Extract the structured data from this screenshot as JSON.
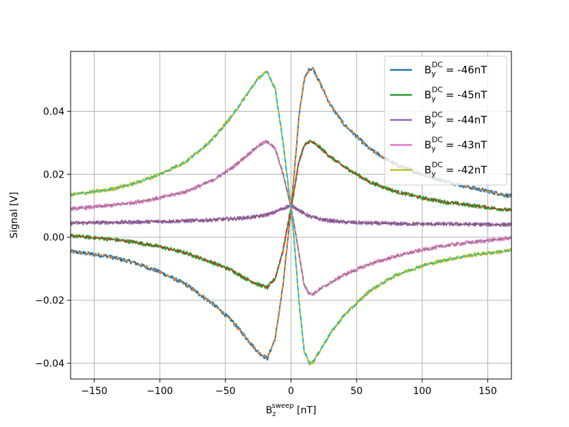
{
  "chart_data": {
    "type": "line",
    "title": "",
    "xlabel": {
      "base": "B",
      "sub": "z",
      "sup": "sweep",
      "unit": " [nT]"
    },
    "ylabel": "Signal [V]",
    "xlim": [
      -168,
      168
    ],
    "ylim": [
      -0.045,
      0.059
    ],
    "xticks": [
      -150,
      -100,
      -50,
      0,
      50,
      100,
      150
    ],
    "xtick_labels": [
      "−150",
      "−100",
      "−50",
      "0",
      "50",
      "100",
      "150"
    ],
    "yticks": [
      -0.04,
      -0.02,
      0.0,
      0.02,
      0.04
    ],
    "ytick_labels": [
      "−0.04",
      "−0.02",
      "0.00",
      "0.02",
      "0.04"
    ],
    "grid": true,
    "legend_position": "top-right",
    "legend_label_template": {
      "base": "B",
      "sub": "y",
      "sup": "DC"
    },
    "series": [
      {
        "name": "= -46nT",
        "color": "#1f77b4",
        "fit_color": "#ff7f0e",
        "x": [
          -168,
          -140,
          -120,
          -100,
          -80,
          -60,
          -45,
          -35,
          -25,
          -18,
          -12,
          -6,
          -2,
          0,
          2,
          6,
          10,
          14,
          17,
          22,
          30,
          40,
          60,
          80,
          100,
          120,
          140,
          168
        ],
        "y": [
          -0.0045,
          -0.006,
          -0.008,
          -0.011,
          -0.015,
          -0.021,
          -0.0265,
          -0.0315,
          -0.0365,
          -0.0385,
          -0.032,
          -0.015,
          0.001,
          0.0095,
          0.018,
          0.038,
          0.05,
          0.0535,
          0.0535,
          0.049,
          0.042,
          0.036,
          0.028,
          0.023,
          0.02,
          0.0175,
          0.0155,
          0.013
        ]
      },
      {
        "name": "= -45nT",
        "color": "#2ca02c",
        "fit_color": "#d62728",
        "x": [
          -168,
          -140,
          -120,
          -100,
          -80,
          -60,
          -45,
          -35,
          -25,
          -18,
          -12,
          -6,
          -2,
          0,
          2,
          6,
          10,
          14,
          17,
          22,
          30,
          40,
          60,
          80,
          100,
          120,
          140,
          168
        ],
        "y": [
          0.0005,
          -0.0005,
          -0.0015,
          -0.003,
          -0.005,
          -0.008,
          -0.0105,
          -0.013,
          -0.015,
          -0.016,
          -0.013,
          -0.004,
          0.005,
          0.0095,
          0.014,
          0.024,
          0.029,
          0.0305,
          0.03,
          0.0285,
          0.0255,
          0.0225,
          0.0175,
          0.0145,
          0.0125,
          0.011,
          0.01,
          0.0085
        ]
      },
      {
        "name": "= -44nT",
        "color": "#9467bd",
        "fit_color": "#8c564b",
        "x": [
          -168,
          -140,
          -120,
          -100,
          -80,
          -60,
          -40,
          -25,
          -15,
          -8,
          -3,
          0,
          3,
          8,
          15,
          25,
          40,
          60,
          80,
          100,
          120,
          140,
          168
        ],
        "y": [
          0.0045,
          0.0047,
          0.0048,
          0.005,
          0.0052,
          0.0055,
          0.006,
          0.0066,
          0.0075,
          0.0088,
          0.0097,
          0.01,
          0.0095,
          0.008,
          0.0065,
          0.0055,
          0.0048,
          0.0045,
          0.0043,
          0.0042,
          0.0042,
          0.0041,
          0.004
        ]
      },
      {
        "name": "= -43nT",
        "color": "#e377c2",
        "fit_color": "#7f7f7f",
        "x": [
          -168,
          -140,
          -120,
          -100,
          -80,
          -60,
          -45,
          -35,
          -25,
          -18,
          -12,
          -6,
          -2,
          0,
          2,
          6,
          10,
          14,
          17,
          22,
          30,
          40,
          60,
          80,
          100,
          120,
          140,
          168
        ],
        "y": [
          0.009,
          0.01,
          0.011,
          0.0125,
          0.0145,
          0.018,
          0.022,
          0.0255,
          0.029,
          0.0305,
          0.028,
          0.02,
          0.013,
          0.0095,
          0.005,
          -0.005,
          -0.015,
          -0.018,
          -0.018,
          -0.0165,
          -0.0145,
          -0.012,
          -0.0085,
          -0.006,
          -0.004,
          -0.0025,
          -0.0015,
          -0.0002
        ]
      },
      {
        "name": "= -42nT",
        "color": "#bcbd22",
        "fit_color": "#17becf",
        "x": [
          -168,
          -140,
          -120,
          -100,
          -80,
          -60,
          -45,
          -35,
          -25,
          -18,
          -12,
          -6,
          -2,
          0,
          2,
          6,
          10,
          14,
          17,
          22,
          30,
          40,
          60,
          80,
          100,
          120,
          140,
          168
        ],
        "y": [
          0.0135,
          0.015,
          0.017,
          0.02,
          0.024,
          0.031,
          0.0385,
          0.0445,
          0.0505,
          0.0525,
          0.047,
          0.03,
          0.016,
          0.0095,
          0.001,
          -0.02,
          -0.036,
          -0.04,
          -0.0395,
          -0.036,
          -0.0305,
          -0.025,
          -0.017,
          -0.012,
          -0.009,
          -0.007,
          -0.0055,
          -0.0042
        ]
      }
    ]
  }
}
